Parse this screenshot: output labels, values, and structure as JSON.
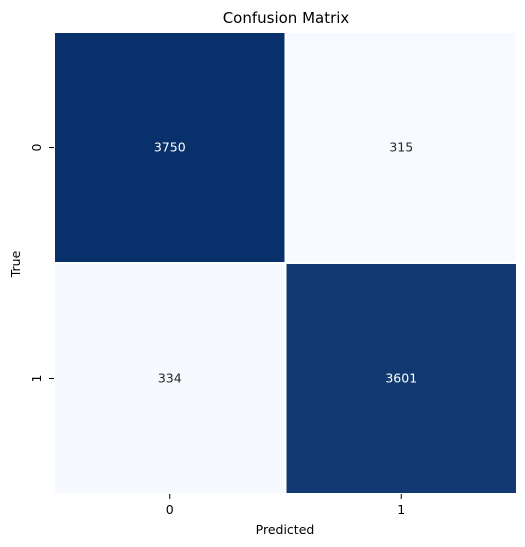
{
  "chart_data": {
    "type": "heatmap",
    "title": "Confusion Matrix",
    "xlabel": "Predicted",
    "ylabel": "True",
    "x_categories": [
      "0",
      "1"
    ],
    "y_categories": [
      "0",
      "1"
    ],
    "values": [
      [
        3750,
        315
      ],
      [
        334,
        3601
      ]
    ],
    "colormap": "Blues",
    "color_low": "#f7fbff",
    "color_high": "#08306b",
    "annot_color_dark": "#ffffff",
    "annot_color_light": "#262626",
    "cell_border_color": "#ffffff",
    "colorbar": false,
    "grid": false
  }
}
